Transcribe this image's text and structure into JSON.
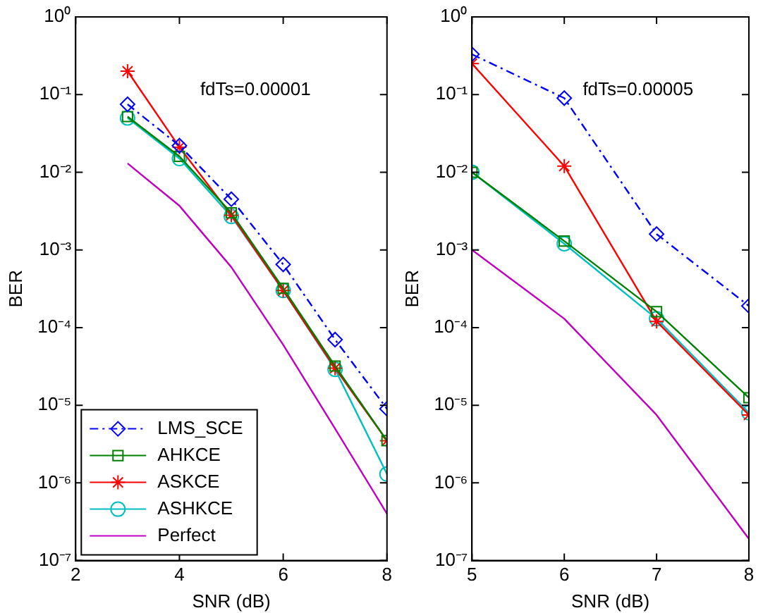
{
  "chart_data": [
    {
      "type": "line",
      "xlabel": "SNR (dB)",
      "ylabel": "BER",
      "log": "y",
      "x": [
        3,
        4,
        5,
        6,
        7,
        8
      ],
      "xlim": [
        2,
        8
      ],
      "xticks": [
        2,
        4,
        6,
        8
      ],
      "ylim": [
        1e-07,
        1
      ],
      "yticks": [
        {
          "value": 1e-07,
          "label": "10⁻⁷"
        },
        {
          "value": 1e-06,
          "label": "10⁻⁶"
        },
        {
          "value": 1e-05,
          "label": "10⁻⁵"
        },
        {
          "value": 0.0001,
          "label": "10⁻⁴"
        },
        {
          "value": 0.001,
          "label": "10⁻³"
        },
        {
          "value": 0.01,
          "label": "10⁻²"
        },
        {
          "value": 0.1,
          "label": "10⁻¹"
        },
        {
          "value": 1,
          "label": "10⁰"
        }
      ],
      "annotations": [
        "fdTs=0.00001"
      ],
      "legend": "bottom left",
      "grid": false,
      "series": [
        {
          "name": "LMS_SCE",
          "color": "#0000ff",
          "marker": "diamond",
          "line_style": "dashdot",
          "values": [
            0.075,
            0.022,
            0.0045,
            0.00065,
            7e-05,
            9e-06
          ]
        },
        {
          "name": "AHKCE",
          "color": "#008000",
          "marker": "square",
          "line_style": "solid",
          "values": [
            0.052,
            0.016,
            0.003,
            0.00032,
            3.2e-05,
            3.5e-06
          ]
        },
        {
          "name": "ASKCE",
          "color": "#ff0000",
          "marker": "cross",
          "line_style": "solid",
          "values": [
            0.2,
            0.021,
            0.0028,
            0.0003,
            3e-05,
            3.5e-06
          ]
        },
        {
          "name": "ASHKCE",
          "color": "#00bfbf",
          "marker": "circle",
          "line_style": "solid",
          "values": [
            0.05,
            0.015,
            0.0027,
            0.0003,
            2.9e-05,
            1.3e-06
          ]
        },
        {
          "name": "Perfect",
          "color": "#bf00bf",
          "marker": "none",
          "line_style": "solid",
          "values": [
            0.013,
            0.0037,
            0.0006,
            6e-05,
            5e-06,
            4e-07
          ]
        }
      ]
    },
    {
      "type": "line",
      "xlabel": "SNR (dB)",
      "ylabel": "BER",
      "log": "y",
      "x": [
        5,
        6,
        7,
        8
      ],
      "xlim": [
        5,
        8
      ],
      "xticks": [
        5,
        6,
        7,
        8
      ],
      "ylim": [
        1e-07,
        1
      ],
      "yticks": [
        {
          "value": 1e-07,
          "label": "10⁻⁷"
        },
        {
          "value": 1e-06,
          "label": "10⁻⁶"
        },
        {
          "value": 1e-05,
          "label": "10⁻⁵"
        },
        {
          "value": 0.0001,
          "label": "10⁻⁴"
        },
        {
          "value": 0.001,
          "label": "10⁻³"
        },
        {
          "value": 0.01,
          "label": "10⁻²"
        },
        {
          "value": 0.1,
          "label": "10⁻¹"
        },
        {
          "value": 1,
          "label": "10⁰"
        }
      ],
      "annotations": [
        "fdTs=0.00005"
      ],
      "grid": false,
      "series": [
        {
          "color": "#0000ff",
          "marker": "diamond",
          "line_style": "dashdot",
          "values": [
            0.33,
            0.09,
            0.0016,
            0.00019
          ]
        },
        {
          "color": "#008000",
          "marker": "square",
          "line_style": "solid",
          "values": [
            0.01,
            0.0013,
            0.00016,
            1.25e-05
          ]
        },
        {
          "color": "#ff0000",
          "marker": "cross",
          "line_style": "solid",
          "values": [
            0.25,
            0.012,
            0.00012,
            7.5e-06
          ]
        },
        {
          "color": "#00bfbf",
          "marker": "circle",
          "line_style": "solid",
          "values": [
            0.01,
            0.0012,
            0.00013,
            8e-06
          ]
        },
        {
          "color": "#bf00bf",
          "marker": "none",
          "line_style": "solid",
          "values": [
            0.001,
            0.00013,
            7.5e-06,
            1.9e-07
          ]
        }
      ]
    }
  ]
}
